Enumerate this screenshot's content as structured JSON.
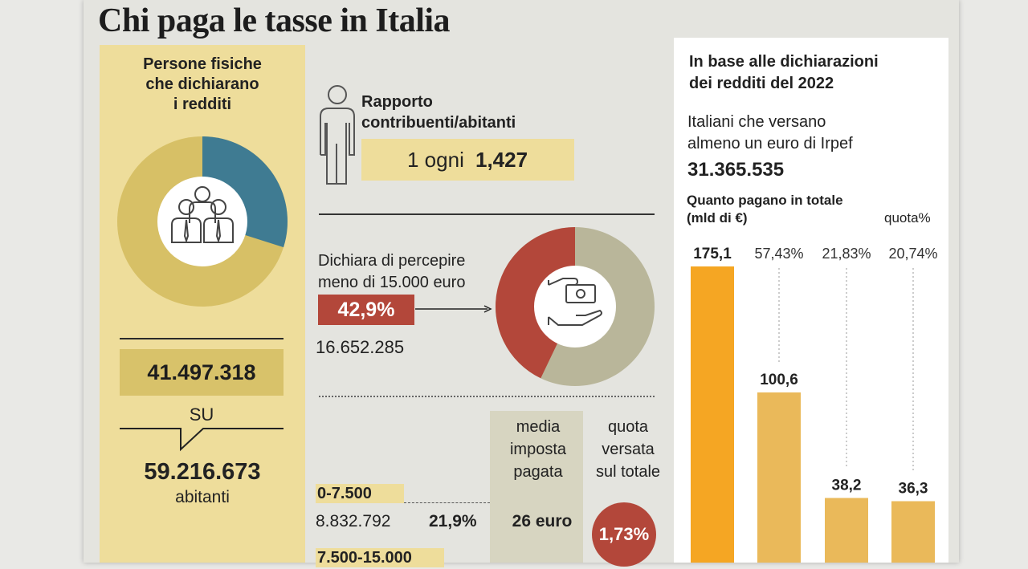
{
  "title": "Chi paga le tasse in Italia",
  "left": {
    "heading": [
      "Persone fisiche",
      "che dichiarano",
      "i redditi"
    ],
    "declarants": "41.497.318",
    "su": "SU",
    "inhabitants": "59.216.673",
    "inhabitants_label": "abitanti",
    "donut_share": 0.299,
    "colors": {
      "panel": "#eedd9b",
      "donut_main": "#d7c066",
      "donut_accent": "#3f7b92",
      "box": "#d8c26a"
    }
  },
  "ratio": {
    "heading": [
      "Rapporto",
      "contribuenti/abitanti"
    ],
    "prefix": "1 ogni",
    "value": "1,427"
  },
  "low_income": {
    "label": [
      "Dichiara di percepire",
      "meno di 15.000 euro"
    ],
    "percent": "42,9%",
    "count": "16.652.285",
    "donut_share": 0.429,
    "colors": {
      "accent": "#b3473a",
      "rest": "#b9b69a"
    }
  },
  "table": {
    "col_media": [
      "media",
      "imposta",
      "pagata"
    ],
    "col_quota": [
      "quota",
      "versata",
      "sul totale"
    ],
    "rows": [
      {
        "band": "0-7.500",
        "count": "8.832.792",
        "pct": "21,9%",
        "media": "26 euro",
        "quota": "1,73%"
      },
      {
        "band": "7.500-15.000"
      }
    ]
  },
  "right": {
    "heading": [
      "In base alle dichiarazioni",
      "dei redditi del 2022"
    ],
    "italiani": [
      "Italiani che versano",
      "almeno un euro di Irpef"
    ],
    "italiani_num": "31.365.535",
    "quanto": [
      "Quanto pagano in totale",
      "(mld di €)"
    ],
    "quota_label": "quota%"
  },
  "chart_data": {
    "type": "bar",
    "title": "Quanto pagano in totale",
    "ylabel": "(mld di €)",
    "ylim": [
      0,
      175.1
    ],
    "categories": [
      "",
      "",
      "",
      ""
    ],
    "values": [
      175.1,
      100.6,
      38.2,
      36.3
    ],
    "value_labels": [
      "175,1",
      "100,6",
      "38,2",
      "36,3"
    ],
    "shares": [
      "",
      "57,43%",
      "21,83%",
      "20,74%"
    ],
    "colors": [
      "#f5a623",
      "#eab95a",
      "#eab95a",
      "#eab95a"
    ]
  }
}
